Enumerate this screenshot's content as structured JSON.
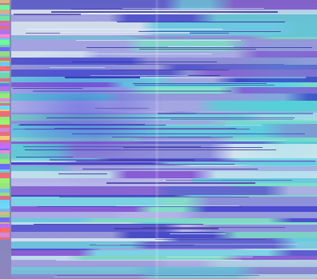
{
  "image": {
    "description_kind": "abstract-glitch-texture",
    "palette": {
      "backdrop": "#7f7fb0",
      "lavender": "#b8b8e8",
      "periwinkle": "#8a8ad0",
      "cyan": "#66d9e8",
      "mint": "#7fe0c8",
      "deep_blue": "#2a2ac8",
      "violet": "#9a5ad8",
      "pale": "#d8e8f0",
      "teal": "#3fb8c8",
      "magenta": "#c85ad8"
    },
    "artifacts": {
      "left_strip_colors": [
        "#ff6a6a",
        "#6aff9a",
        "#6a6aff",
        "#ffd26a",
        "#c86aff",
        "#6adfff",
        "#ff8ad8",
        "#9aff6a"
      ],
      "band_colors": [
        "#b9b9ec",
        "#7ad9e6",
        "#5a5ad2",
        "#c6e6f0",
        "#84e2cc",
        "#9a9ae0",
        "#3a3ac8",
        "#6acfe2",
        "#a8a8e6",
        "#e0eef4",
        "#8a5ad6",
        "#5fd0d8",
        "#b0b0ea",
        "#7ee0c6",
        "#4a4ad0",
        "#c0e2ee",
        "#9090dc",
        "#64d6e6"
      ]
    }
  }
}
